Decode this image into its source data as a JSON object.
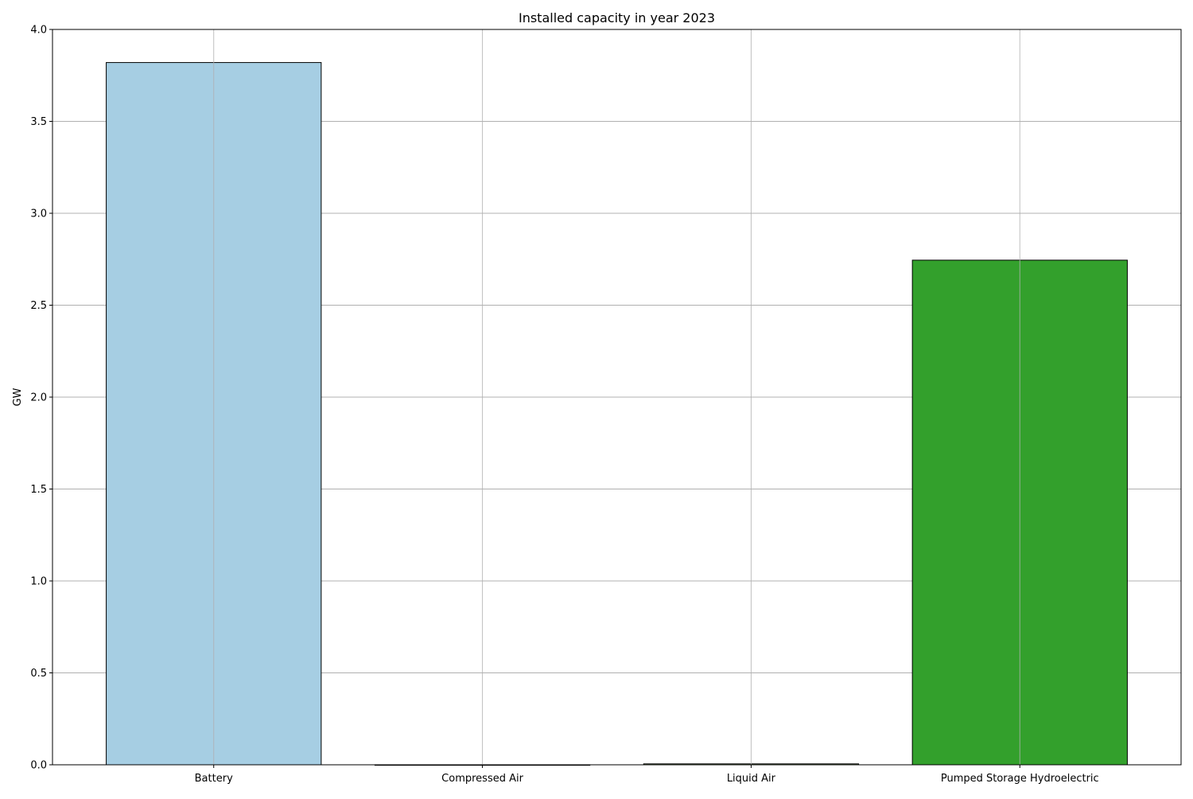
{
  "chart_data": {
    "type": "bar",
    "title": "Installed capacity in year 2023",
    "xlabel": "",
    "ylabel": "GW",
    "categories": [
      "Battery",
      "Compressed Air",
      "Liquid Air",
      "Pumped Storage Hydroelectric"
    ],
    "values": [
      3.82,
      0.0,
      0.005,
      2.745
    ],
    "colors": [
      "#a6cee3",
      "#1f78b4",
      "#b2df8a",
      "#33a02c"
    ],
    "ylim": [
      0,
      4.0
    ],
    "yticks": [
      0.0,
      0.5,
      1.0,
      1.5,
      2.0,
      2.5,
      3.0,
      3.5,
      4.0
    ],
    "ytick_labels": [
      "0.0",
      "0.5",
      "1.0",
      "1.5",
      "2.0",
      "2.5",
      "3.0",
      "3.5",
      "4.0"
    ],
    "grid": true,
    "grid_color": "#b0b0b0",
    "bar_edge_color": "#000000"
  }
}
